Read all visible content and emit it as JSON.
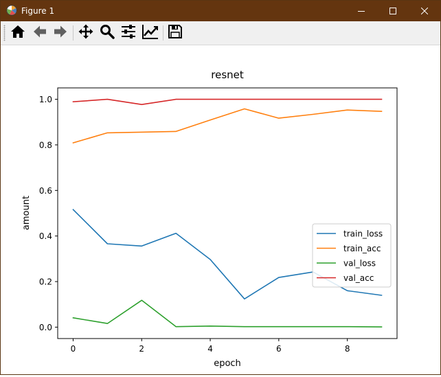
{
  "window": {
    "title": "Figure 1",
    "titlebar_color": "#64350f",
    "controls": [
      "minimize-icon",
      "maximize-icon",
      "close-icon"
    ]
  },
  "toolbar": {
    "buttons": [
      {
        "name": "home",
        "icon": "home-icon"
      },
      {
        "name": "back",
        "icon": "arrow-left-icon"
      },
      {
        "name": "forward",
        "icon": "arrow-right-icon"
      },
      {
        "name": "pan",
        "icon": "move-arrows-icon"
      },
      {
        "name": "zoom",
        "icon": "magnifier-icon"
      },
      {
        "name": "configure-subplots",
        "icon": "sliders-icon"
      },
      {
        "name": "edit-axis",
        "icon": "line-chart-icon"
      },
      {
        "name": "save",
        "icon": "floppy-disk-icon"
      }
    ]
  },
  "chart_data": {
    "type": "line",
    "title": "resnet",
    "xlabel": "epoch",
    "ylabel": "amount",
    "x": [
      0,
      1,
      2,
      3,
      4,
      5,
      6,
      7,
      8,
      9
    ],
    "xlim": [
      -0.45,
      9.45
    ],
    "ylim": [
      -0.05,
      1.05
    ],
    "xticks": [
      "0",
      "2",
      "4",
      "6",
      "8"
    ],
    "xtick_values": [
      0,
      2,
      4,
      6,
      8
    ],
    "yticks": [
      "0.0",
      "0.2",
      "0.4",
      "0.6",
      "0.8",
      "1.0"
    ],
    "ytick_values": [
      0.0,
      0.2,
      0.4,
      0.6,
      0.8,
      1.0
    ],
    "grid": false,
    "legend_position": "center-right",
    "series": [
      {
        "name": "train_loss",
        "color": "#1f77b4",
        "values": [
          0.516,
          0.366,
          0.356,
          0.412,
          0.297,
          0.124,
          0.218,
          0.242,
          0.16,
          0.14
        ]
      },
      {
        "name": "train_acc",
        "color": "#ff7f0e",
        "values": [
          0.809,
          0.853,
          0.856,
          0.859,
          0.909,
          0.958,
          0.917,
          0.934,
          0.953,
          0.947
        ]
      },
      {
        "name": "val_loss",
        "color": "#2ca02c",
        "values": [
          0.041,
          0.016,
          0.118,
          0.002,
          0.005,
          0.002,
          0.002,
          0.002,
          0.002,
          0.001
        ]
      },
      {
        "name": "val_acc",
        "color": "#d62728",
        "values": [
          0.989,
          1.0,
          0.977,
          1.0,
          1.0,
          1.0,
          1.0,
          1.0,
          1.0,
          1.0
        ]
      }
    ]
  }
}
